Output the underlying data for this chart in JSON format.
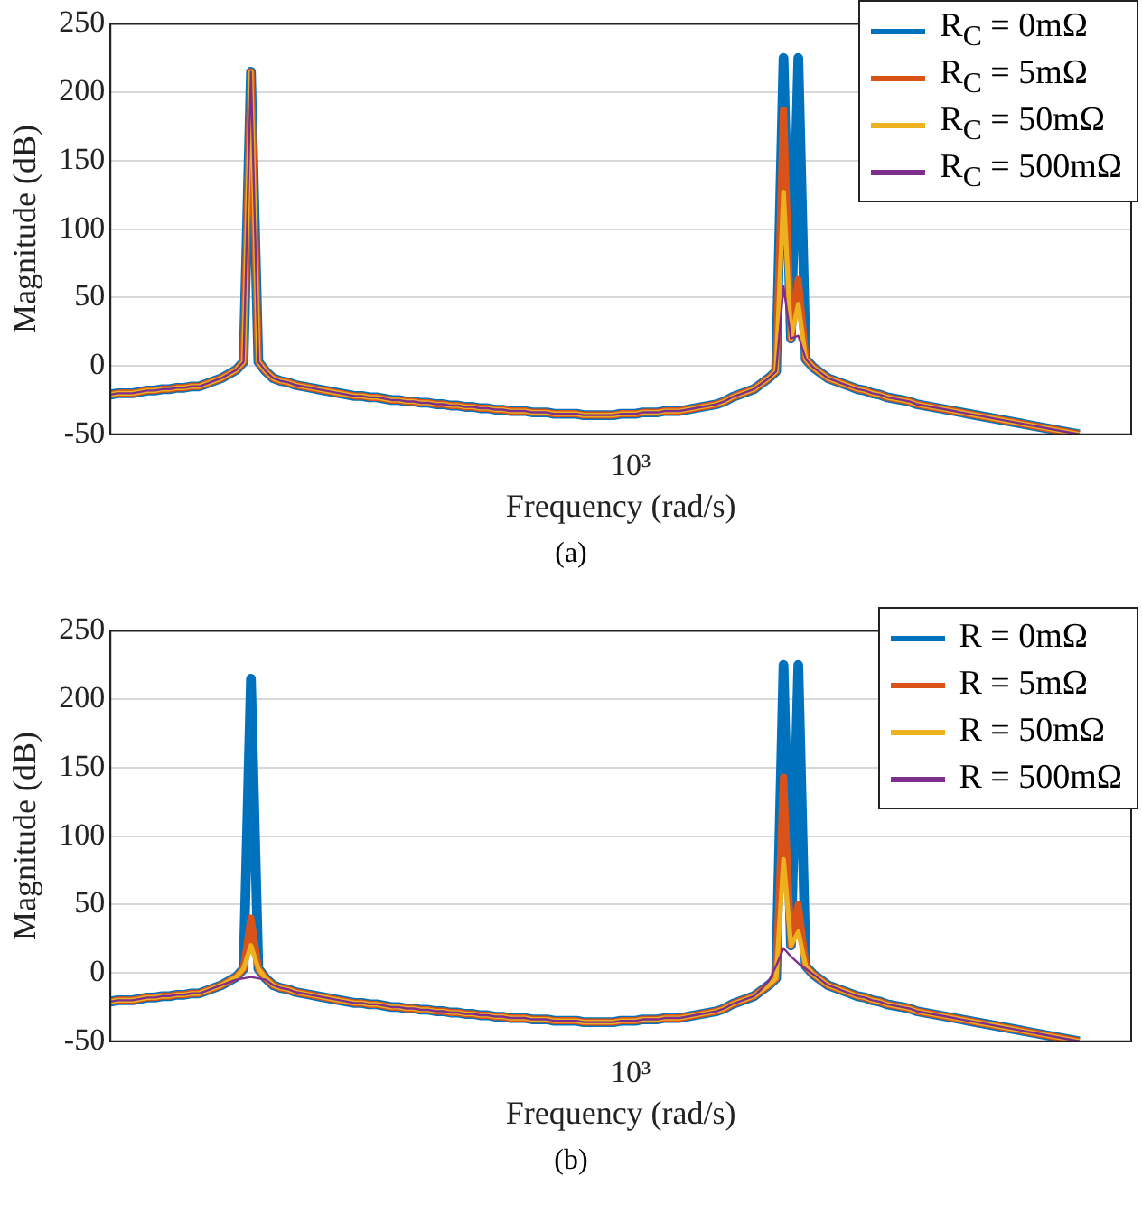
{
  "chart_data": [
    {
      "type": "line",
      "xlabel": "Frequency (rad/s)",
      "ylabel": "Magnitude (dB)",
      "annotations": [
        "10³",
        "(a)"
      ],
      "grid": "y",
      "legend": "top right",
      "marker": "none",
      "line_style": "solid",
      "tick_labels": "y",
      "categories": [
        null,
        null,
        null,
        null,
        null,
        null,
        null,
        null,
        null,
        null,
        null,
        null,
        null,
        null,
        null,
        null,
        null,
        null,
        null,
        null,
        null,
        null,
        null,
        null,
        null,
        null,
        null,
        null,
        null,
        null,
        null,
        null,
        null,
        null,
        null,
        null,
        null,
        null,
        null,
        null,
        null,
        null,
        null,
        null,
        null,
        null,
        null,
        null,
        null,
        null,
        null,
        null,
        null,
        null,
        null,
        null,
        null,
        null,
        null,
        null,
        null,
        null,
        null,
        null,
        null,
        null,
        null,
        null,
        null,
        null,
        null,
        null,
        null,
        null,
        null,
        null,
        null,
        null,
        null,
        null,
        null,
        null,
        null,
        null,
        null,
        null,
        null,
        null,
        null,
        null,
        null,
        null,
        null,
        null,
        null,
        null,
        null,
        null,
        null,
        null,
        null,
        null,
        null,
        null,
        null,
        null,
        null,
        null,
        null,
        null,
        null,
        null,
        null,
        null,
        null,
        null,
        null,
        null,
        null,
        null,
        null,
        null,
        null,
        null,
        null,
        null,
        null,
        null,
        null,
        null,
        null,
        null,
        null,
        null,
        null,
        null,
        null,
        null,
        null
      ],
      "ylim": [
        -50,
        250
      ],
      "yticks": [
        -50,
        0,
        50,
        100,
        150,
        200,
        250
      ],
      "series": [
        {
          "name": "R$_{C}$ = 0mΩ",
          "color": "#0072bd",
          "values": [
            -21,
            -20,
            -20,
            -20,
            -19,
            -18,
            -18,
            -17,
            -17,
            -16,
            -16,
            -15,
            -15,
            -13,
            -11,
            -9,
            -6,
            -3,
            3,
            215,
            3,
            -4,
            -9,
            -11,
            -12,
            -14,
            -15,
            -16,
            -17,
            -18,
            -19,
            -20,
            -21,
            -22,
            -22,
            -23,
            -23,
            -24,
            -25,
            -25,
            -26,
            -26,
            -27,
            -27,
            -28,
            -28,
            -29,
            -29,
            -30,
            -30,
            -31,
            -31,
            -32,
            -32,
            -33,
            -33,
            -33,
            -34,
            -34,
            -34,
            -35,
            -35,
            -35,
            -35,
            -36,
            -36,
            -36,
            -36,
            -36,
            -35,
            -35,
            -35,
            -34,
            -34,
            -34,
            -33,
            -33,
            -33,
            -32,
            -31,
            -30,
            -29,
            -28,
            -26,
            -23,
            -21,
            -19,
            -17,
            -13,
            -9,
            -4,
            225,
            20,
            225,
            5,
            -1,
            -5,
            -9,
            -11,
            -13,
            -15,
            -17,
            -18,
            -20,
            -21,
            -23,
            -24,
            -25,
            -26,
            -28,
            -29,
            -30,
            -31,
            -32,
            -33,
            -34,
            -35,
            -36,
            -37,
            -38,
            -39,
            -40,
            -41,
            -42,
            -43,
            -44,
            -45,
            -46,
            -47,
            -48,
            -49,
            -50,
            null,
            null,
            null,
            null,
            null,
            null,
            null
          ]
        },
        {
          "name": "R$_{C}$ = 5mΩ",
          "color": "#d95319",
          "values": [
            -21,
            -20,
            -20,
            -20,
            -19,
            -18,
            -18,
            -17,
            -17,
            -16,
            -16,
            -15,
            -15,
            -13,
            -11,
            -9,
            -6,
            -3,
            3,
            215,
            3,
            -4,
            -9,
            -11,
            -12,
            -14,
            -15,
            -16,
            -17,
            -18,
            -19,
            -20,
            -21,
            -22,
            -22,
            -23,
            -23,
            -24,
            -25,
            -25,
            -26,
            -26,
            -27,
            -27,
            -28,
            -28,
            -29,
            -29,
            -30,
            -30,
            -31,
            -31,
            -32,
            -32,
            -33,
            -33,
            -33,
            -34,
            -34,
            -34,
            -35,
            -35,
            -35,
            -35,
            -36,
            -36,
            -36,
            -36,
            -36,
            -35,
            -35,
            -35,
            -34,
            -34,
            -34,
            -33,
            -33,
            -33,
            -32,
            -31,
            -30,
            -29,
            -28,
            -26,
            -23,
            -21,
            -19,
            -17,
            -13,
            -9,
            -4,
            187,
            20,
            63,
            5,
            -1,
            -5,
            -9,
            -11,
            -13,
            -15,
            -17,
            -18,
            -20,
            -21,
            -23,
            -24,
            -25,
            -26,
            -28,
            -29,
            -30,
            -31,
            -32,
            -33,
            -34,
            -35,
            -36,
            -37,
            -38,
            -39,
            -40,
            -41,
            -42,
            -43,
            -44,
            -45,
            -46,
            -47,
            -48,
            -49,
            -50,
            null,
            null,
            null,
            null,
            null,
            null,
            null
          ]
        },
        {
          "name": "R$_{C}$ = 50mΩ",
          "color": "#edb120",
          "values": [
            -21,
            -20,
            -20,
            -20,
            -19,
            -18,
            -18,
            -17,
            -17,
            -16,
            -16,
            -15,
            -15,
            -13,
            -11,
            -9,
            -6,
            -3,
            3,
            215,
            3,
            -4,
            -9,
            -11,
            -12,
            -14,
            -15,
            -16,
            -17,
            -18,
            -19,
            -20,
            -21,
            -22,
            -22,
            -23,
            -23,
            -24,
            -25,
            -25,
            -26,
            -26,
            -27,
            -27,
            -28,
            -28,
            -29,
            -29,
            -30,
            -30,
            -31,
            -31,
            -32,
            -32,
            -33,
            -33,
            -33,
            -34,
            -34,
            -34,
            -35,
            -35,
            -35,
            -35,
            -36,
            -36,
            -36,
            -36,
            -36,
            -35,
            -35,
            -35,
            -34,
            -34,
            -34,
            -33,
            -33,
            -33,
            -32,
            -31,
            -30,
            -29,
            -28,
            -26,
            -23,
            -21,
            -19,
            -17,
            -13,
            -9,
            -4,
            127,
            20,
            45,
            5,
            -1,
            -5,
            -9,
            -11,
            -13,
            -15,
            -17,
            -18,
            -20,
            -21,
            -23,
            -24,
            -25,
            -26,
            -28,
            -29,
            -30,
            -31,
            -32,
            -33,
            -34,
            -35,
            -36,
            -37,
            -38,
            -39,
            -40,
            -41,
            -42,
            -43,
            -44,
            -45,
            -46,
            -47,
            -48,
            -49,
            -50,
            null,
            null,
            null,
            null,
            null,
            null,
            null
          ]
        },
        {
          "name": "R$_{C}$ = 500mΩ",
          "color": "#7e2f8e",
          "values": [
            -21,
            -20,
            -20,
            -20,
            -19,
            -18,
            -18,
            -17,
            -17,
            -16,
            -16,
            -15,
            -15,
            -13,
            -11,
            -9,
            -6,
            -3,
            3,
            215,
            3,
            -4,
            -9,
            -11,
            -12,
            -14,
            -15,
            -16,
            -17,
            -18,
            -19,
            -20,
            -21,
            -22,
            -22,
            -23,
            -23,
            -24,
            -25,
            -25,
            -26,
            -26,
            -27,
            -27,
            -28,
            -28,
            -29,
            -29,
            -30,
            -30,
            -31,
            -31,
            -32,
            -32,
            -33,
            -33,
            -33,
            -34,
            -34,
            -34,
            -35,
            -35,
            -35,
            -35,
            -36,
            -36,
            -36,
            -36,
            -36,
            -35,
            -35,
            -35,
            -34,
            -34,
            -34,
            -33,
            -33,
            -33,
            -32,
            -31,
            -30,
            -29,
            -28,
            -26,
            -23,
            -21,
            -19,
            -17,
            -13,
            -9,
            -4,
            58,
            20,
            22,
            5,
            -1,
            -5,
            -9,
            -11,
            -13,
            -15,
            -17,
            -18,
            -20,
            -21,
            -23,
            -24,
            -25,
            -26,
            -28,
            -29,
            -30,
            -31,
            -32,
            -33,
            -34,
            -35,
            -36,
            -37,
            -38,
            -39,
            -40,
            -41,
            -42,
            -43,
            -44,
            -45,
            -46,
            -47,
            -48,
            -49,
            -50,
            null,
            null,
            null,
            null,
            null,
            null,
            null
          ]
        }
      ]
    },
    {
      "type": "line",
      "xlabel": "Frequency (rad/s)",
      "ylabel": "Magnitude (dB)",
      "annotations": [
        "10³",
        "(b)"
      ],
      "grid": "y",
      "legend": "top right",
      "marker": "none",
      "line_style": "solid",
      "tick_labels": "y",
      "categories": [
        null,
        null,
        null,
        null,
        null,
        null,
        null,
        null,
        null,
        null,
        null,
        null,
        null,
        null,
        null,
        null,
        null,
        null,
        null,
        null,
        null,
        null,
        null,
        null,
        null,
        null,
        null,
        null,
        null,
        null,
        null,
        null,
        null,
        null,
        null,
        null,
        null,
        null,
        null,
        null,
        null,
        null,
        null,
        null,
        null,
        null,
        null,
        null,
        null,
        null,
        null,
        null,
        null,
        null,
        null,
        null,
        null,
        null,
        null,
        null,
        null,
        null,
        null,
        null,
        null,
        null,
        null,
        null,
        null,
        null,
        null,
        null,
        null,
        null,
        null,
        null,
        null,
        null,
        null,
        null,
        null,
        null,
        null,
        null,
        null,
        null,
        null,
        null,
        null,
        null,
        null,
        null,
        null,
        null,
        null,
        null,
        null,
        null,
        null,
        null,
        null,
        null,
        null,
        null,
        null,
        null,
        null,
        null,
        null,
        null,
        null,
        null,
        null,
        null,
        null,
        null,
        null,
        null,
        null,
        null,
        null,
        null,
        null,
        null,
        null,
        null,
        null,
        null,
        null,
        null,
        null,
        null,
        null,
        null,
        null,
        null,
        null,
        null,
        null
      ],
      "ylim": [
        -50,
        250
      ],
      "yticks": [
        -50,
        0,
        50,
        100,
        150,
        200,
        250
      ],
      "series": [
        {
          "name": "R = 0mΩ",
          "color": "#0072bd",
          "values": [
            -21,
            -20,
            -20,
            -20,
            -19,
            -18,
            -18,
            -17,
            -17,
            -16,
            -16,
            -15,
            -15,
            -13,
            -11,
            -9,
            -6,
            -3,
            3,
            215,
            3,
            -4,
            -9,
            -11,
            -12,
            -14,
            -15,
            -16,
            -17,
            -18,
            -19,
            -20,
            -21,
            -22,
            -22,
            -23,
            -23,
            -24,
            -25,
            -25,
            -26,
            -26,
            -27,
            -27,
            -28,
            -28,
            -29,
            -29,
            -30,
            -30,
            -31,
            -31,
            -32,
            -32,
            -33,
            -33,
            -33,
            -34,
            -34,
            -34,
            -35,
            -35,
            -35,
            -35,
            -36,
            -36,
            -36,
            -36,
            -36,
            -35,
            -35,
            -35,
            -34,
            -34,
            -34,
            -33,
            -33,
            -33,
            -32,
            -31,
            -30,
            -29,
            -28,
            -26,
            -23,
            -21,
            -19,
            -17,
            -13,
            -9,
            -4,
            225,
            20,
            225,
            5,
            -1,
            -5,
            -9,
            -11,
            -13,
            -15,
            -17,
            -18,
            -20,
            -21,
            -23,
            -24,
            -25,
            -26,
            -28,
            -29,
            -30,
            -31,
            -32,
            -33,
            -34,
            -35,
            -36,
            -37,
            -38,
            -39,
            -40,
            -41,
            -42,
            -43,
            -44,
            -45,
            -46,
            -47,
            -48,
            -49,
            -50,
            null,
            null,
            null,
            null,
            null,
            null,
            null
          ]
        },
        {
          "name": "R = 5mΩ",
          "color": "#d95319",
          "values": [
            -21,
            -20,
            -20,
            -20,
            -19,
            -18,
            -18,
            -17,
            -17,
            -16,
            -16,
            -15,
            -15,
            -13,
            -11,
            -9,
            -6,
            -3,
            3,
            40,
            3,
            -4,
            -9,
            -11,
            -12,
            -14,
            -15,
            -16,
            -17,
            -18,
            -19,
            -20,
            -21,
            -22,
            -22,
            -23,
            -23,
            -24,
            -25,
            -25,
            -26,
            -26,
            -27,
            -27,
            -28,
            -28,
            -29,
            -29,
            -30,
            -30,
            -31,
            -31,
            -32,
            -32,
            -33,
            -33,
            -33,
            -34,
            -34,
            -34,
            -35,
            -35,
            -35,
            -35,
            -36,
            -36,
            -36,
            -36,
            -36,
            -35,
            -35,
            -35,
            -34,
            -34,
            -34,
            -33,
            -33,
            -33,
            -32,
            -31,
            -30,
            -29,
            -28,
            -26,
            -23,
            -21,
            -19,
            -17,
            -13,
            -9,
            -4,
            143,
            20,
            50,
            5,
            -1,
            -5,
            -9,
            -11,
            -13,
            -15,
            -17,
            -18,
            -20,
            -21,
            -23,
            -24,
            -25,
            -26,
            -28,
            -29,
            -30,
            -31,
            -32,
            -33,
            -34,
            -35,
            -36,
            -37,
            -38,
            -39,
            -40,
            -41,
            -42,
            -43,
            -44,
            -45,
            -46,
            -47,
            -48,
            -49,
            -50,
            null,
            null,
            null,
            null,
            null,
            null,
            null
          ]
        },
        {
          "name": "R = 50mΩ",
          "color": "#edb120",
          "values": [
            -21,
            -20,
            -20,
            -20,
            -19,
            -18,
            -18,
            -17,
            -17,
            -16,
            -16,
            -15,
            -15,
            -13,
            -11,
            -9,
            -6,
            -3,
            3,
            20,
            3,
            -4,
            -9,
            -11,
            -12,
            -14,
            -15,
            -16,
            -17,
            -18,
            -19,
            -20,
            -21,
            -22,
            -22,
            -23,
            -23,
            -24,
            -25,
            -25,
            -26,
            -26,
            -27,
            -27,
            -28,
            -28,
            -29,
            -29,
            -30,
            -30,
            -31,
            -31,
            -32,
            -32,
            -33,
            -33,
            -33,
            -34,
            -34,
            -34,
            -35,
            -35,
            -35,
            -35,
            -36,
            -36,
            -36,
            -36,
            -36,
            -35,
            -35,
            -35,
            -34,
            -34,
            -34,
            -33,
            -33,
            -33,
            -32,
            -31,
            -30,
            -29,
            -28,
            -26,
            -23,
            -21,
            -19,
            -17,
            -13,
            -9,
            -4,
            83,
            20,
            30,
            5,
            -1,
            -5,
            -9,
            -11,
            -13,
            -15,
            -17,
            -18,
            -20,
            -21,
            -23,
            -24,
            -25,
            -26,
            -28,
            -29,
            -30,
            -31,
            -32,
            -33,
            -34,
            -35,
            -36,
            -37,
            -38,
            -39,
            -40,
            -41,
            -42,
            -43,
            -44,
            -45,
            -46,
            -47,
            -48,
            -49,
            -50,
            null,
            null,
            null,
            null,
            null,
            null,
            null
          ]
        },
        {
          "name": "R = 500mΩ",
          "color": "#7e2f8e",
          "values": [
            -21,
            -20,
            -20,
            -20,
            -19,
            -18,
            -18,
            -17,
            -17,
            -16,
            -16,
            -15,
            -15,
            -13,
            -11,
            -9,
            -7,
            -5,
            -4,
            -3,
            -4,
            -5,
            -9,
            -11,
            -12,
            -14,
            -15,
            -16,
            -17,
            -18,
            -19,
            -20,
            -21,
            -22,
            -22,
            -23,
            -23,
            -24,
            -25,
            -25,
            -26,
            -26,
            -27,
            -27,
            -28,
            -28,
            -29,
            -29,
            -30,
            -30,
            -31,
            -31,
            -32,
            -32,
            -33,
            -33,
            -33,
            -34,
            -34,
            -34,
            -35,
            -35,
            -35,
            -35,
            -36,
            -36,
            -36,
            -36,
            -36,
            -35,
            -35,
            -35,
            -34,
            -34,
            -34,
            -33,
            -33,
            -33,
            -32,
            -31,
            -30,
            -29,
            -28,
            -26,
            -23,
            -21,
            -19,
            -17,
            -12,
            -6,
            5,
            18,
            12,
            7,
            3,
            -1,
            -5,
            -9,
            -11,
            -13,
            -15,
            -17,
            -18,
            -20,
            -21,
            -23,
            -24,
            -25,
            -26,
            -28,
            -29,
            -30,
            -31,
            -32,
            -33,
            -34,
            -35,
            -36,
            -37,
            -38,
            -39,
            -40,
            -41,
            -42,
            -43,
            -44,
            -45,
            -46,
            -47,
            -48,
            -49,
            -50,
            null,
            null,
            null,
            null,
            null,
            null,
            null
          ]
        }
      ]
    }
  ]
}
